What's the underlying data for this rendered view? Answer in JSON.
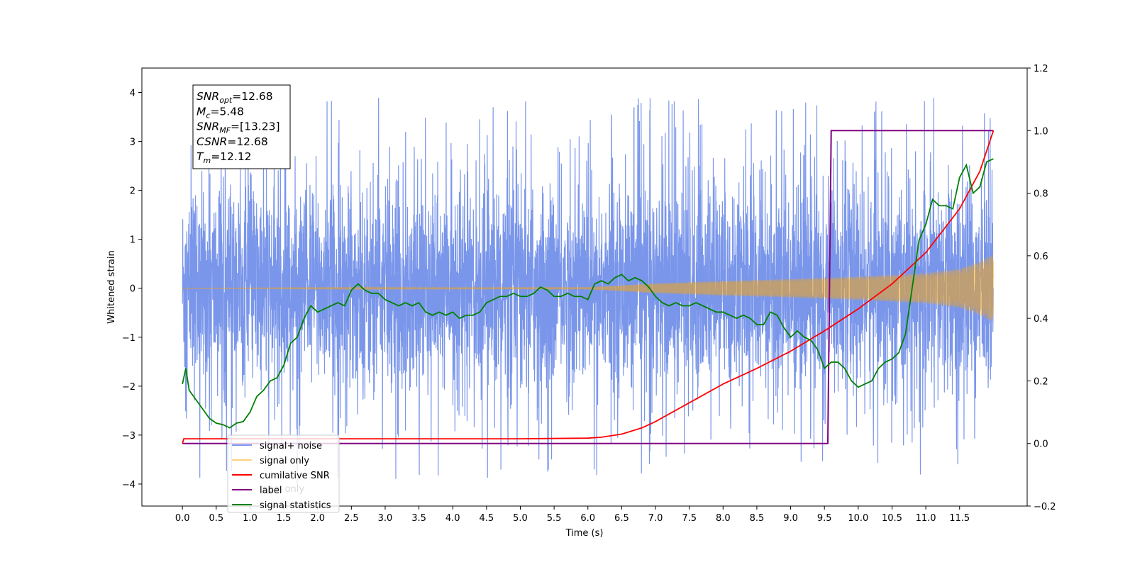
{
  "chart_data": {
    "type": "line",
    "title": "",
    "xlabel": "Time (s)",
    "ylabel": "Whitened strain",
    "y2label": "",
    "xlim": [
      -0.6,
      12.5
    ],
    "ylim": [
      -4.45,
      4.5
    ],
    "y2lim": [
      -0.2,
      1.2
    ],
    "x_ticks": [
      0.0,
      0.5,
      1.0,
      1.5,
      2.0,
      2.5,
      3.0,
      3.5,
      4.0,
      4.5,
      5.0,
      5.5,
      6.0,
      6.5,
      7.0,
      7.5,
      8.0,
      8.5,
      9.0,
      9.5,
      10.0,
      10.5,
      11.0,
      11.5
    ],
    "x_tick_labels": [
      "0.0",
      "0.5",
      "1.0",
      "1.5",
      "2.0",
      "2.5",
      "3.0",
      "3.5",
      "4.0",
      "4.5",
      "5.0",
      "5.5",
      "6.0",
      "6.5",
      "7.0",
      "7.5",
      "8.0",
      "8.5",
      "9.0",
      "9.5",
      "10.0",
      "10.5",
      "11.0",
      "11.5"
    ],
    "y_ticks": [
      -4,
      -3,
      -2,
      -1,
      0,
      1,
      2,
      3,
      4
    ],
    "y_tick_labels": [
      "−4",
      "−3",
      "−2",
      "−1",
      "0",
      "1",
      "2",
      "3",
      "4"
    ],
    "y2_ticks": [
      -0.2,
      0.0,
      0.2,
      0.4,
      0.6,
      0.8,
      1.0,
      1.2
    ],
    "y2_tick_labels": [
      "−0.2",
      "0.0",
      "0.2",
      "0.4",
      "0.6",
      "0.8",
      "1.0",
      "1.2"
    ],
    "grid": false,
    "legend_position": "bottom-left",
    "legend": [
      {
        "label": "signal+ noise",
        "color": "#4169e1"
      },
      {
        "label": "signal only",
        "color": "#ffa500"
      },
      {
        "label": "cumilative SNR",
        "color": "#ff0000"
      },
      {
        "label": "label",
        "color": "#800080"
      },
      {
        "label": "signal statistics",
        "color": "#008000"
      }
    ],
    "hidden_legend_text": "label only",
    "annotation": [
      {
        "base": "SNR",
        "sub": "opt",
        "value": "=12.68"
      },
      {
        "base": "M",
        "sub": "c",
        "value": "=5.48"
      },
      {
        "base": "SNR",
        "sub": "MF",
        "value": "=[13.23]"
      },
      {
        "base": "CSNR",
        "sub": "",
        "value": "=12.68"
      },
      {
        "base": "T",
        "sub": "m",
        "value": "=12.12"
      }
    ],
    "series": [
      {
        "name": "signal+ noise",
        "axis": "left",
        "color": "#4169e1",
        "x_range": [
          0.0,
          12.0
        ],
        "typical_amplitude": 1.3,
        "peak_max": 4.12,
        "peak_min": -4.02
      },
      {
        "name": "signal only",
        "axis": "left",
        "color": "#ffa500",
        "x": [
          0.0,
          6.0,
          7.0,
          8.0,
          9.0,
          10.0,
          11.0,
          11.5,
          11.8,
          12.0
        ],
        "envelope": [
          0.0,
          0.02,
          0.1,
          0.15,
          0.19,
          0.24,
          0.31,
          0.4,
          0.55,
          0.7
        ]
      },
      {
        "name": "cumilative SNR",
        "axis": "right",
        "color": "#ff0000",
        "x": [
          0.0,
          0.02,
          5.0,
          6.0,
          6.2,
          6.5,
          6.8,
          7.0,
          7.5,
          8.0,
          8.5,
          9.0,
          9.5,
          10.0,
          10.5,
          11.0,
          11.5,
          11.8,
          12.0
        ],
        "values": [
          0.0,
          0.015,
          0.015,
          0.017,
          0.02,
          0.03,
          0.05,
          0.07,
          0.13,
          0.19,
          0.24,
          0.295,
          0.36,
          0.43,
          0.51,
          0.61,
          0.75,
          0.87,
          1.0
        ]
      },
      {
        "name": "label",
        "axis": "right",
        "color": "#800080",
        "x": [
          0.0,
          9.55,
          9.6,
          12.0
        ],
        "values": [
          0.0,
          0.0,
          1.0,
          1.0
        ]
      },
      {
        "name": "signal statistics",
        "axis": "right",
        "color": "#008000",
        "x": [
          0.0,
          0.05,
          0.1,
          0.2,
          0.3,
          0.4,
          0.5,
          0.6,
          0.7,
          0.8,
          0.9,
          1.0,
          1.1,
          1.2,
          1.3,
          1.4,
          1.5,
          1.6,
          1.7,
          1.8,
          1.9,
          2.0,
          2.1,
          2.2,
          2.3,
          2.4,
          2.5,
          2.6,
          2.7,
          2.8,
          2.9,
          3.0,
          3.1,
          3.2,
          3.3,
          3.4,
          3.5,
          3.6,
          3.7,
          3.8,
          3.9,
          4.0,
          4.1,
          4.2,
          4.3,
          4.4,
          4.5,
          4.6,
          4.7,
          4.8,
          4.9,
          5.0,
          5.1,
          5.2,
          5.3,
          5.4,
          5.5,
          5.6,
          5.7,
          5.8,
          5.9,
          6.0,
          6.1,
          6.2,
          6.3,
          6.4,
          6.5,
          6.6,
          6.7,
          6.8,
          6.9,
          7.0,
          7.1,
          7.2,
          7.3,
          7.4,
          7.5,
          7.6,
          7.7,
          7.8,
          7.9,
          8.0,
          8.1,
          8.2,
          8.3,
          8.4,
          8.5,
          8.6,
          8.7,
          8.8,
          8.9,
          9.0,
          9.1,
          9.2,
          9.3,
          9.4,
          9.5,
          9.6,
          9.7,
          9.8,
          9.9,
          10.0,
          10.1,
          10.2,
          10.3,
          10.4,
          10.5,
          10.6,
          10.7,
          10.8,
          10.9,
          11.0,
          11.1,
          11.2,
          11.3,
          11.4,
          11.5,
          11.6,
          11.7,
          11.8,
          11.9,
          12.0
        ],
        "values": [
          0.19,
          0.24,
          0.17,
          0.14,
          0.11,
          0.08,
          0.065,
          0.06,
          0.05,
          0.065,
          0.07,
          0.1,
          0.15,
          0.17,
          0.2,
          0.21,
          0.25,
          0.32,
          0.34,
          0.4,
          0.44,
          0.42,
          0.43,
          0.44,
          0.45,
          0.44,
          0.49,
          0.51,
          0.49,
          0.48,
          0.48,
          0.46,
          0.45,
          0.44,
          0.45,
          0.44,
          0.45,
          0.42,
          0.41,
          0.42,
          0.41,
          0.42,
          0.4,
          0.41,
          0.41,
          0.42,
          0.45,
          0.46,
          0.47,
          0.47,
          0.48,
          0.47,
          0.47,
          0.48,
          0.5,
          0.49,
          0.47,
          0.47,
          0.48,
          0.47,
          0.47,
          0.46,
          0.51,
          0.52,
          0.51,
          0.53,
          0.54,
          0.52,
          0.53,
          0.52,
          0.5,
          0.47,
          0.45,
          0.44,
          0.45,
          0.44,
          0.44,
          0.45,
          0.44,
          0.43,
          0.42,
          0.42,
          0.41,
          0.4,
          0.41,
          0.4,
          0.38,
          0.38,
          0.42,
          0.41,
          0.37,
          0.34,
          0.36,
          0.34,
          0.33,
          0.3,
          0.24,
          0.26,
          0.26,
          0.24,
          0.2,
          0.18,
          0.19,
          0.2,
          0.24,
          0.26,
          0.27,
          0.29,
          0.35,
          0.5,
          0.65,
          0.7,
          0.78,
          0.76,
          0.76,
          0.75,
          0.85,
          0.89,
          0.8,
          0.82,
          0.9,
          0.91
        ]
      }
    ]
  }
}
